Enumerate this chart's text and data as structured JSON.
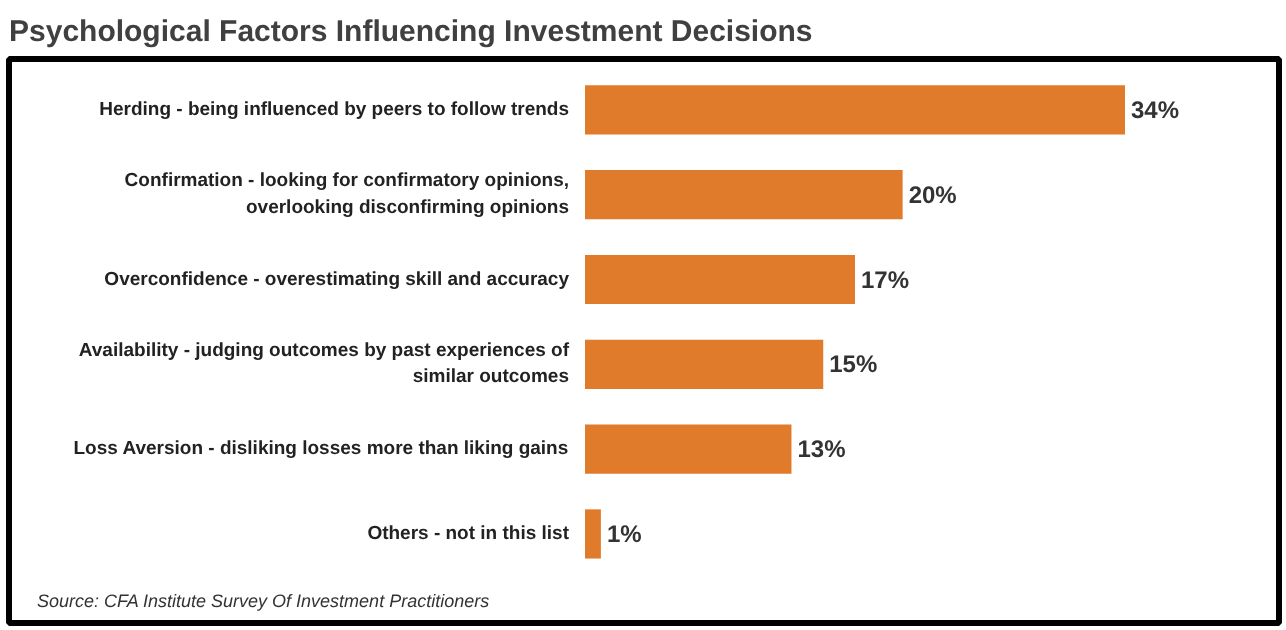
{
  "chart_data": {
    "type": "bar",
    "orientation": "horizontal",
    "title": "Psychological Factors Influencing Investment Decisions",
    "categories": [
      "Herding - being influenced by peers to follow trends",
      "Confirmation - looking for confirmatory opinions, overlooking disconfirming opinions",
      "Overconfidence - overestimating skill and accuracy",
      "Availability - judging outcomes by past experiences of similar outcomes",
      "Loss Aversion - disliking losses more than liking gains",
      "Others - not in this list"
    ],
    "values": [
      34,
      20,
      17,
      15,
      13,
      1
    ],
    "value_labels": [
      "34%",
      "20%",
      "17%",
      "15%",
      "13%",
      "1%"
    ],
    "color": "#e07b2c",
    "grid": false,
    "annotations": [
      "Source: CFA Institute Survey Of Investment Practitioners"
    ]
  }
}
